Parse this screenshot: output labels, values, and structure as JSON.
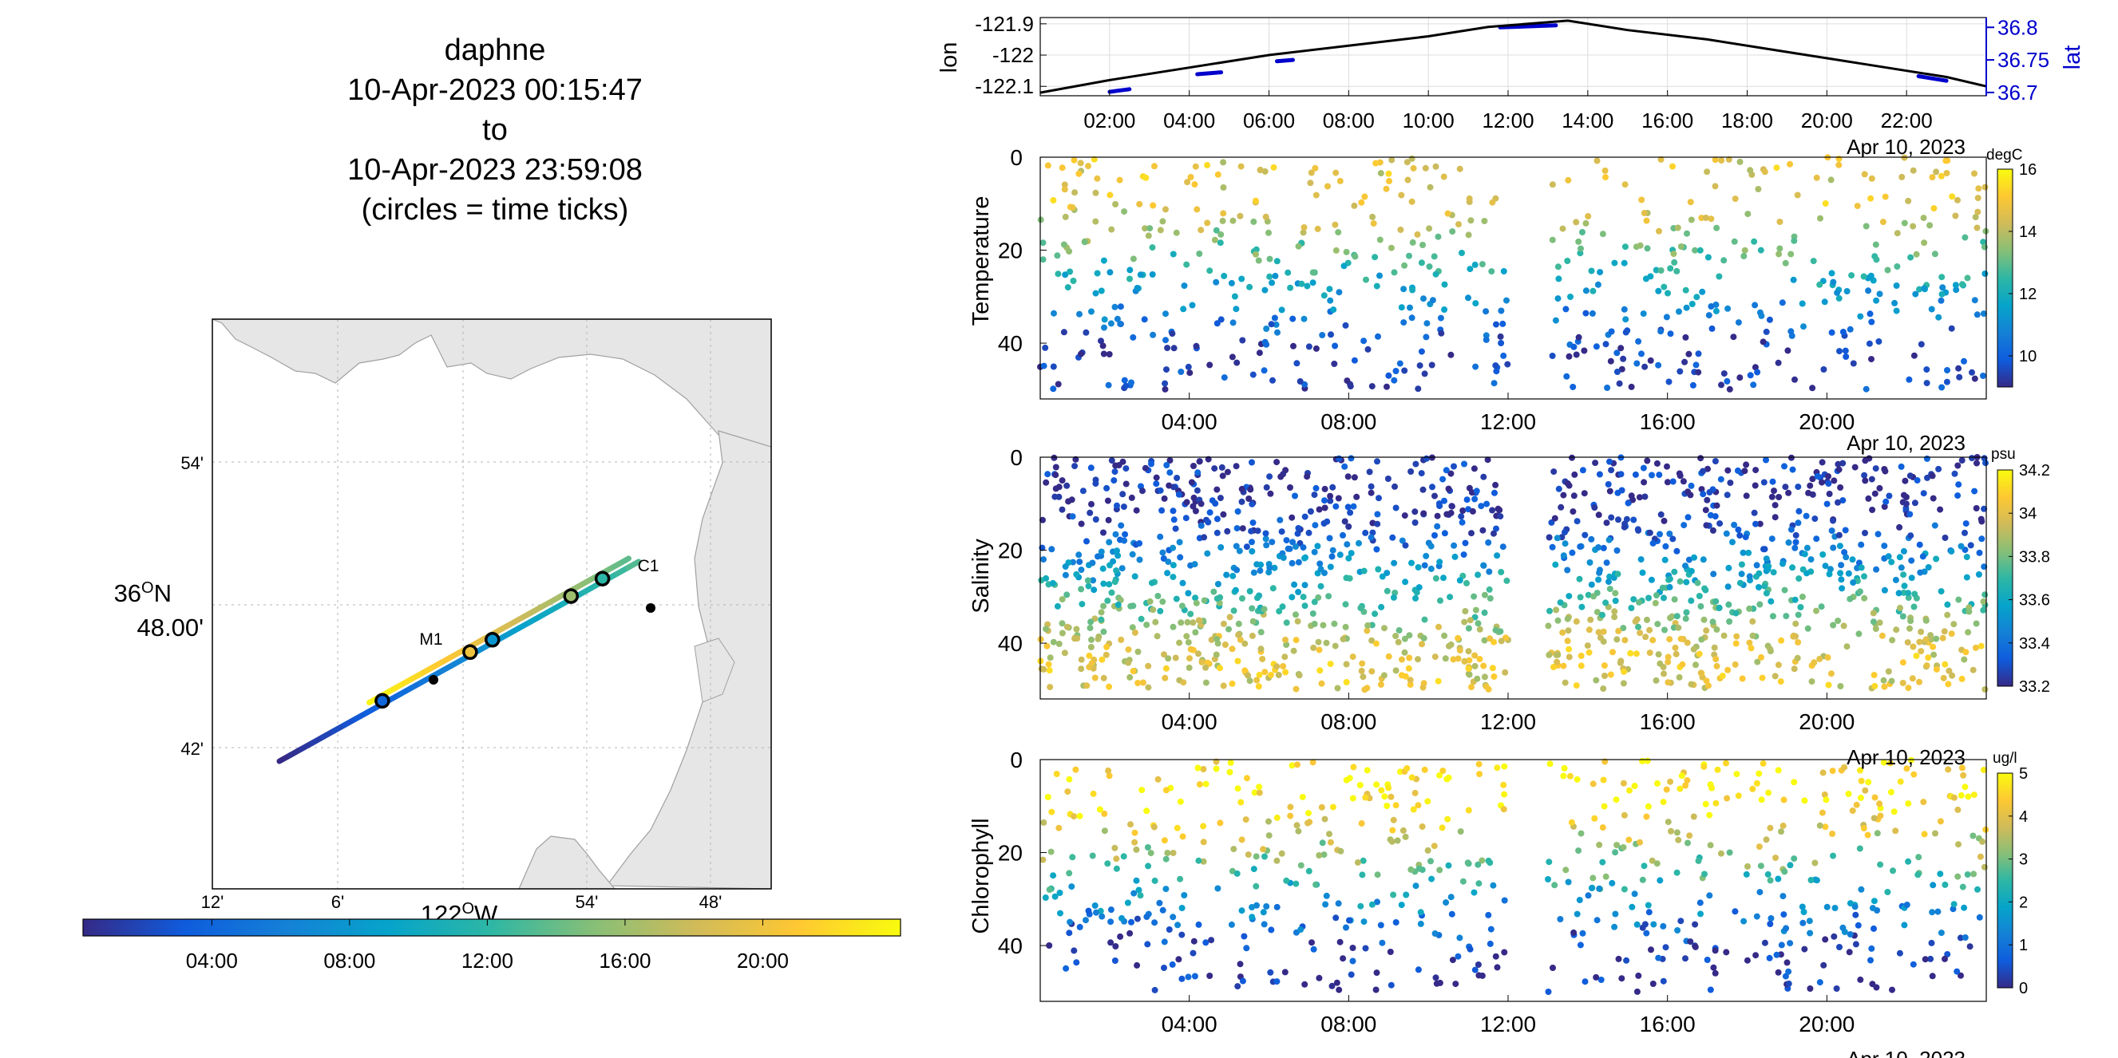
{
  "header": {
    "line1": "daphne",
    "line2": "10-Apr-2023 00:15:47",
    "line3": "to",
    "line4": "10-Apr-2023 23:59:08",
    "line5": "(circles = time ticks)"
  },
  "colors": {
    "accent": "#0000cc",
    "track": "#000000",
    "land": "#e6e6e6",
    "grid": "#c8c8c8",
    "parula": [
      "#352a87",
      "#0f5cdd",
      "#1481d6",
      "#06a4ca",
      "#2eb7a4",
      "#87bf77",
      "#d1bb59",
      "#fec832",
      "#f9fb0e"
    ]
  },
  "chart_data": [
    {
      "type": "line",
      "name": "map",
      "lat_ticks": [
        "54'",
        "48.00'",
        "42'"
      ],
      "lat_main_label_deg": "36",
      "lat_main_label_hemi": "N",
      "lon_ticks": [
        "12'",
        "6'",
        "54'",
        "48'"
      ],
      "lon_main_label_deg": "122",
      "lon_main_label_hemi": "W",
      "deg_symbol": "O",
      "stations": [
        "M1",
        "C1"
      ],
      "track_time_hours": [
        0.26,
        3.0,
        6.0,
        9.0,
        12.0,
        15.0,
        18.0,
        21.0,
        24.0
      ],
      "time_tick_circles_hours": [
        4,
        8,
        12,
        16,
        20
      ],
      "colorbar_ticks": [
        "04:00",
        "08:00",
        "12:00",
        "16:00",
        "20:00"
      ]
    },
    {
      "type": "line",
      "name": "position",
      "ylabel_left": "lon",
      "ylabel_right": "lat",
      "left_ticks": [
        "-121.9",
        "-122",
        "-122.1"
      ],
      "right_ticks": [
        "36.8",
        "36.75",
        "36.7"
      ],
      "xticks": [
        "02:00",
        "04:00",
        "06:00",
        "08:00",
        "10:00",
        "12:00",
        "14:00",
        "16:00",
        "18:00",
        "20:00",
        "22:00"
      ],
      "xdate": "Apr 10, 2023",
      "xlim_hours": [
        0.26,
        24.0
      ],
      "lon_series": {
        "x_hours": [
          0.26,
          2,
          4,
          6,
          8,
          10,
          11.5,
          13.5,
          15,
          17,
          19,
          21,
          23,
          24
        ],
        "y": [
          -122.12,
          -122.08,
          -122.04,
          -122.0,
          -121.97,
          -121.94,
          -121.91,
          -121.89,
          -121.92,
          -121.95,
          -121.99,
          -122.03,
          -122.07,
          -122.1
        ]
      },
      "lat_series": {
        "x_hours": [
          2,
          2.5,
          4.2,
          4.8,
          6.2,
          6.6,
          11.8,
          13.2,
          22.3,
          23,
          24
        ],
        "y": [
          36.701,
          36.705,
          36.728,
          36.731,
          36.748,
          36.75,
          36.8,
          36.803,
          36.725,
          36.718,
          36.705
        ]
      }
    },
    {
      "type": "scatter",
      "name": "temperature",
      "ylabel": "Temperature",
      "units": "degC",
      "ylim": [
        0,
        52
      ],
      "yticks": [
        "0",
        "20",
        "40"
      ],
      "xticks": [
        "04:00",
        "08:00",
        "12:00",
        "16:00",
        "20:00"
      ],
      "xdate": "Apr 10, 2023",
      "clim": [
        9,
        16
      ],
      "cticks": [
        "16",
        "14",
        "12",
        "10"
      ],
      "point_counts": [
        520,
        180
      ],
      "profile_model": {
        "gap_hours": [
          12.0,
          13.0
        ],
        "surface_values": [
          13,
          14,
          15.5,
          16
        ],
        "deep_values": [
          9,
          9.5,
          10
        ],
        "mixed_layer_m": 10,
        "max_depth_m": 50
      }
    },
    {
      "type": "scatter",
      "name": "salinity",
      "ylabel": "Salinity",
      "units": "psu",
      "ylim": [
        0,
        52
      ],
      "yticks": [
        "0",
        "20",
        "40"
      ],
      "xticks": [
        "04:00",
        "08:00",
        "12:00",
        "16:00",
        "20:00"
      ],
      "xdate": "Apr 10, 2023",
      "clim": [
        33.2,
        34.2
      ],
      "cticks": [
        "34.2",
        "34",
        "33.8",
        "33.6",
        "33.4",
        "33.2"
      ],
      "point_counts": [
        1300,
        220
      ],
      "profile_model": {
        "gap_hours": [
          12.0,
          13.0
        ],
        "surface_values": [
          33.2,
          33.25
        ],
        "deep_values": [
          33.9,
          34.1
        ],
        "mixed_layer_m": 12,
        "max_depth_m": 50
      }
    },
    {
      "type": "scatter",
      "name": "chlorophyll",
      "ylabel": "Chlorophyll",
      "units": "ug/l",
      "ylim": [
        0,
        52
      ],
      "yticks": [
        "0",
        "20",
        "40"
      ],
      "xticks": [
        "04:00",
        "08:00",
        "12:00",
        "16:00",
        "20:00"
      ],
      "xdate": "Apr 10, 2023",
      "clim": [
        0,
        5
      ],
      "cticks": [
        "5",
        "4",
        "3",
        "2",
        "1",
        "0"
      ],
      "point_counts": [
        560,
        160
      ],
      "profile_model": {
        "gap_hours": [
          12.0,
          13.0
        ],
        "surface_values": [
          4.5,
          5
        ],
        "deep_values": [
          0,
          0.3
        ],
        "mixed_layer_m": 10,
        "max_depth_m": 50
      }
    }
  ]
}
